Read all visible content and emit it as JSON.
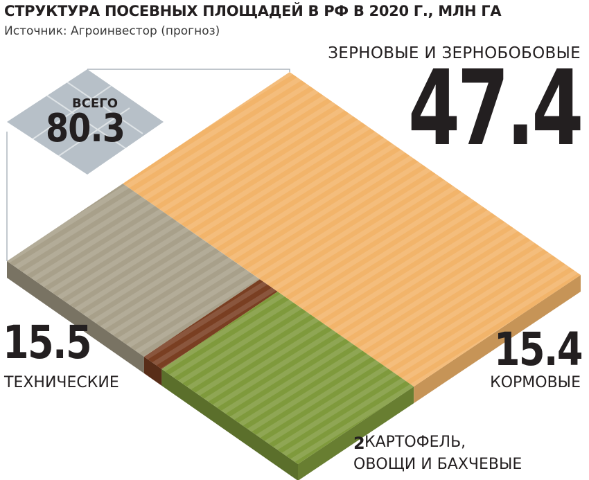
{
  "title": "СТРУКТУРА ПОСЕВНЫХ ПЛОЩАДЕЙ В РФ В 2020 Г., МЛН ГА",
  "source": "Источник: Агроинвестор (прогноз)",
  "total": {
    "label": "ВСЕГО",
    "value": "80.3"
  },
  "colors": {
    "grain": "#f2b46a",
    "technical": "#a8a08a",
    "fodder": "#7f9a3c",
    "potato": "#7a3f22",
    "total_badge": "#b7c0c8"
  },
  "chart_data": {
    "type": "treemap",
    "title": "СТРУКТУРА ПОСЕВНЫХ ПЛОЩАДЕЙ В РФ В 2020 Г., МЛН ГА",
    "unit": "МЛН ГА",
    "total": 80.3,
    "segments": [
      {
        "name": "ЗЕРНОВЫЕ И ЗЕРНОБОБОВЫЕ",
        "value": 47.4,
        "display": "47.4"
      },
      {
        "name": "ТЕХНИЧЕСКИЕ",
        "value": 15.5,
        "display": "15.5"
      },
      {
        "name": "КОРМОВЫЕ",
        "value": 15.4,
        "display": "15.4"
      },
      {
        "name_lines": [
          "КАРТОФЕЛЬ,",
          "ОВОЩИ И БАХЧЕВЫЕ"
        ],
        "value": 2,
        "display": "2"
      }
    ]
  }
}
